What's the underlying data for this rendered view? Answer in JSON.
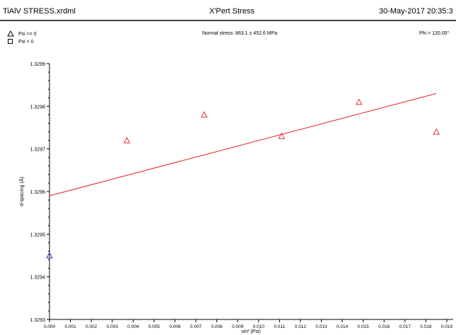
{
  "header": {
    "file": "TiAlV STRESS.xrdml",
    "app": "X'Pert Stress",
    "datetime": "30-May-2017 20:35:3"
  },
  "legend": {
    "pos_label": "Psi >= 0",
    "neg_label": "Psi <  0"
  },
  "stress_text": "Normal stress: 863.1 ± 452.6 MPa",
  "phi_text": "Phi = 120.00°",
  "colors": {
    "points_pos": "#e03030",
    "points_neg": "#2a3fb8",
    "fit_line": "#e02020",
    "axis": "#000000"
  },
  "chart_data": {
    "type": "scatter",
    "xlabel": "sin² (Psi)",
    "ylabel": "d-spacing (Å)",
    "xlim": [
      0.0,
      0.019
    ],
    "ylim": [
      1.3293,
      1.3299
    ],
    "x_ticks": [
      "0.000",
      "0.001",
      "0.002",
      "0.003",
      "0.004",
      "0.005",
      "0.006",
      "0.007",
      "0.008",
      "0.009",
      "0.010",
      "0.011",
      "0.012",
      "0.013",
      "0.014",
      "0.015",
      "0.016",
      "0.017",
      "0.018",
      "0.019"
    ],
    "y_ticks": [
      "1.3293",
      "1.3294",
      "1.3295",
      "1.3296",
      "1.3297",
      "1.3298",
      "1.3299"
    ],
    "series": [
      {
        "name": "Psi >= 0",
        "marker": "triangle",
        "points": [
          {
            "x": 0.0037,
            "y": 1.32972
          },
          {
            "x": 0.0074,
            "y": 1.32978
          },
          {
            "x": 0.0111,
            "y": 1.32973
          },
          {
            "x": 0.0148,
            "y": 1.32981
          },
          {
            "x": 0.0185,
            "y": 1.32974
          }
        ]
      },
      {
        "name": "Psi < 0",
        "marker": "triangle",
        "points": [
          {
            "x": 0.0,
            "y": 1.32945
          }
        ]
      }
    ],
    "fit": {
      "x": [
        0.0,
        0.0185
      ],
      "y": [
        1.32959,
        1.32983
      ]
    }
  }
}
